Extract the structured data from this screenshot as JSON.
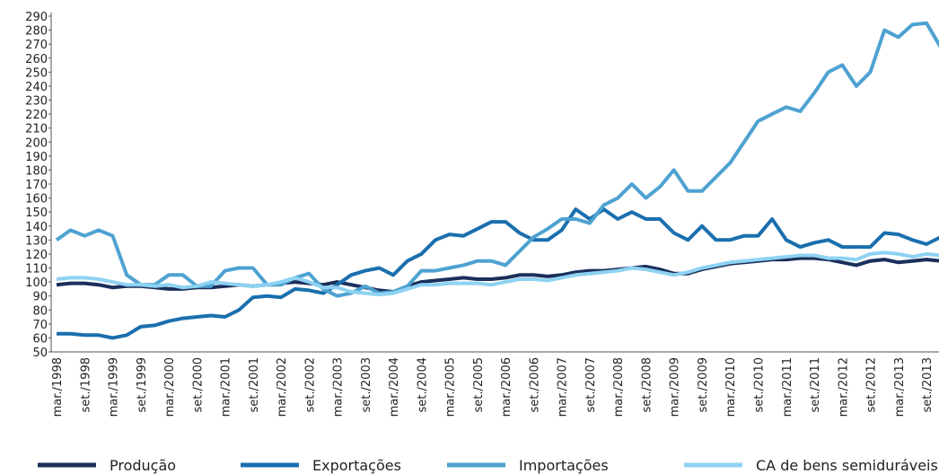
{
  "chart_data": {
    "type": "line",
    "categories": [
      "mar./1998",
      null,
      "set./1998",
      null,
      "mar./1999",
      null,
      "set./1999",
      null,
      "mar./2000",
      null,
      "set./2000",
      null,
      "mar./2001",
      null,
      "set./2001",
      null,
      "mar./2002",
      null,
      "set./2002",
      null,
      "mar./2003",
      null,
      "set./2003",
      null,
      "mar./2004",
      null,
      "set./2004",
      null,
      "mar./2005",
      null,
      "set./2005",
      null,
      "mar./2006",
      null,
      "set./2006",
      null,
      "mar./2007",
      null,
      "set./2007",
      null,
      "mar./2008",
      null,
      "set./2008",
      null,
      "mar./2009",
      null,
      "set./2009",
      null,
      "mar./2010",
      null,
      "set./2010",
      null,
      "mar./2011",
      null,
      "set./2011",
      null,
      "mar./2012",
      null,
      "set./2012",
      null,
      "mar./2013",
      null,
      "set./2013",
      null
    ],
    "series": [
      {
        "name": "Produção",
        "color": "#1b2f5c",
        "values": [
          98,
          99,
          99,
          98,
          96,
          97,
          97,
          96,
          95,
          95,
          96,
          96,
          97,
          98,
          97,
          98,
          99,
          100,
          99,
          98,
          100,
          98,
          96,
          94,
          93,
          97,
          100,
          101,
          102,
          103,
          102,
          102,
          103,
          105,
          105,
          104,
          105,
          107,
          108,
          108,
          109,
          110,
          111,
          109,
          106,
          106,
          109,
          111,
          113,
          114,
          115,
          116,
          116,
          117,
          117,
          116,
          114,
          112,
          115,
          116,
          114,
          115,
          116,
          115
        ]
      },
      {
        "name": "Exportações",
        "color": "#1a6fae",
        "values": [
          63,
          63,
          62,
          62,
          60,
          62,
          68,
          69,
          72,
          74,
          75,
          76,
          75,
          80,
          89,
          90,
          89,
          95,
          94,
          92,
          98,
          105,
          108,
          110,
          105,
          115,
          120,
          130,
          134,
          133,
          138,
          143,
          143,
          135,
          130,
          130,
          137,
          152,
          145,
          152,
          145,
          150,
          145,
          145,
          135,
          130,
          140,
          130,
          130,
          133,
          133,
          145,
          130,
          125,
          128,
          130,
          125,
          125,
          125,
          135,
          134,
          130,
          127,
          132
        ]
      },
      {
        "name": "Importações",
        "color": "#4ea2d2",
        "values": [
          130,
          137,
          133,
          137,
          133,
          105,
          98,
          98,
          105,
          105,
          97,
          97,
          108,
          110,
          110,
          98,
          98,
          103,
          106,
          95,
          90,
          92,
          97,
          92,
          93,
          97,
          108,
          108,
          110,
          112,
          115,
          115,
          112,
          122,
          132,
          138,
          145,
          145,
          142,
          155,
          160,
          170,
          160,
          168,
          180,
          165,
          165,
          175,
          185,
          200,
          215,
          220,
          225,
          222,
          235,
          250,
          255,
          240,
          250,
          280,
          275,
          284,
          285,
          268
        ]
      },
      {
        "name": "CA de bens semiduráveis e não duráveis",
        "color": "#8ed2f2",
        "values": [
          102,
          103,
          103,
          102,
          100,
          98,
          98,
          97,
          98,
          96,
          97,
          100,
          99,
          98,
          97,
          98,
          100,
          103,
          100,
          96,
          96,
          93,
          92,
          91,
          92,
          95,
          98,
          98,
          99,
          99,
          99,
          98,
          100,
          102,
          102,
          101,
          103,
          105,
          106,
          107,
          108,
          110,
          109,
          107,
          105,
          107,
          110,
          112,
          114,
          115,
          116,
          117,
          118,
          119,
          119,
          117,
          117,
          116,
          120,
          121,
          120,
          118,
          120,
          119
        ]
      }
    ],
    "ylim": [
      50,
      290
    ],
    "yticks": [
      50,
      60,
      70,
      80,
      90,
      100,
      110,
      120,
      130,
      140,
      150,
      160,
      170,
      180,
      190,
      200,
      210,
      220,
      230,
      240,
      250,
      260,
      270,
      280,
      290
    ],
    "legend": "bottom"
  }
}
